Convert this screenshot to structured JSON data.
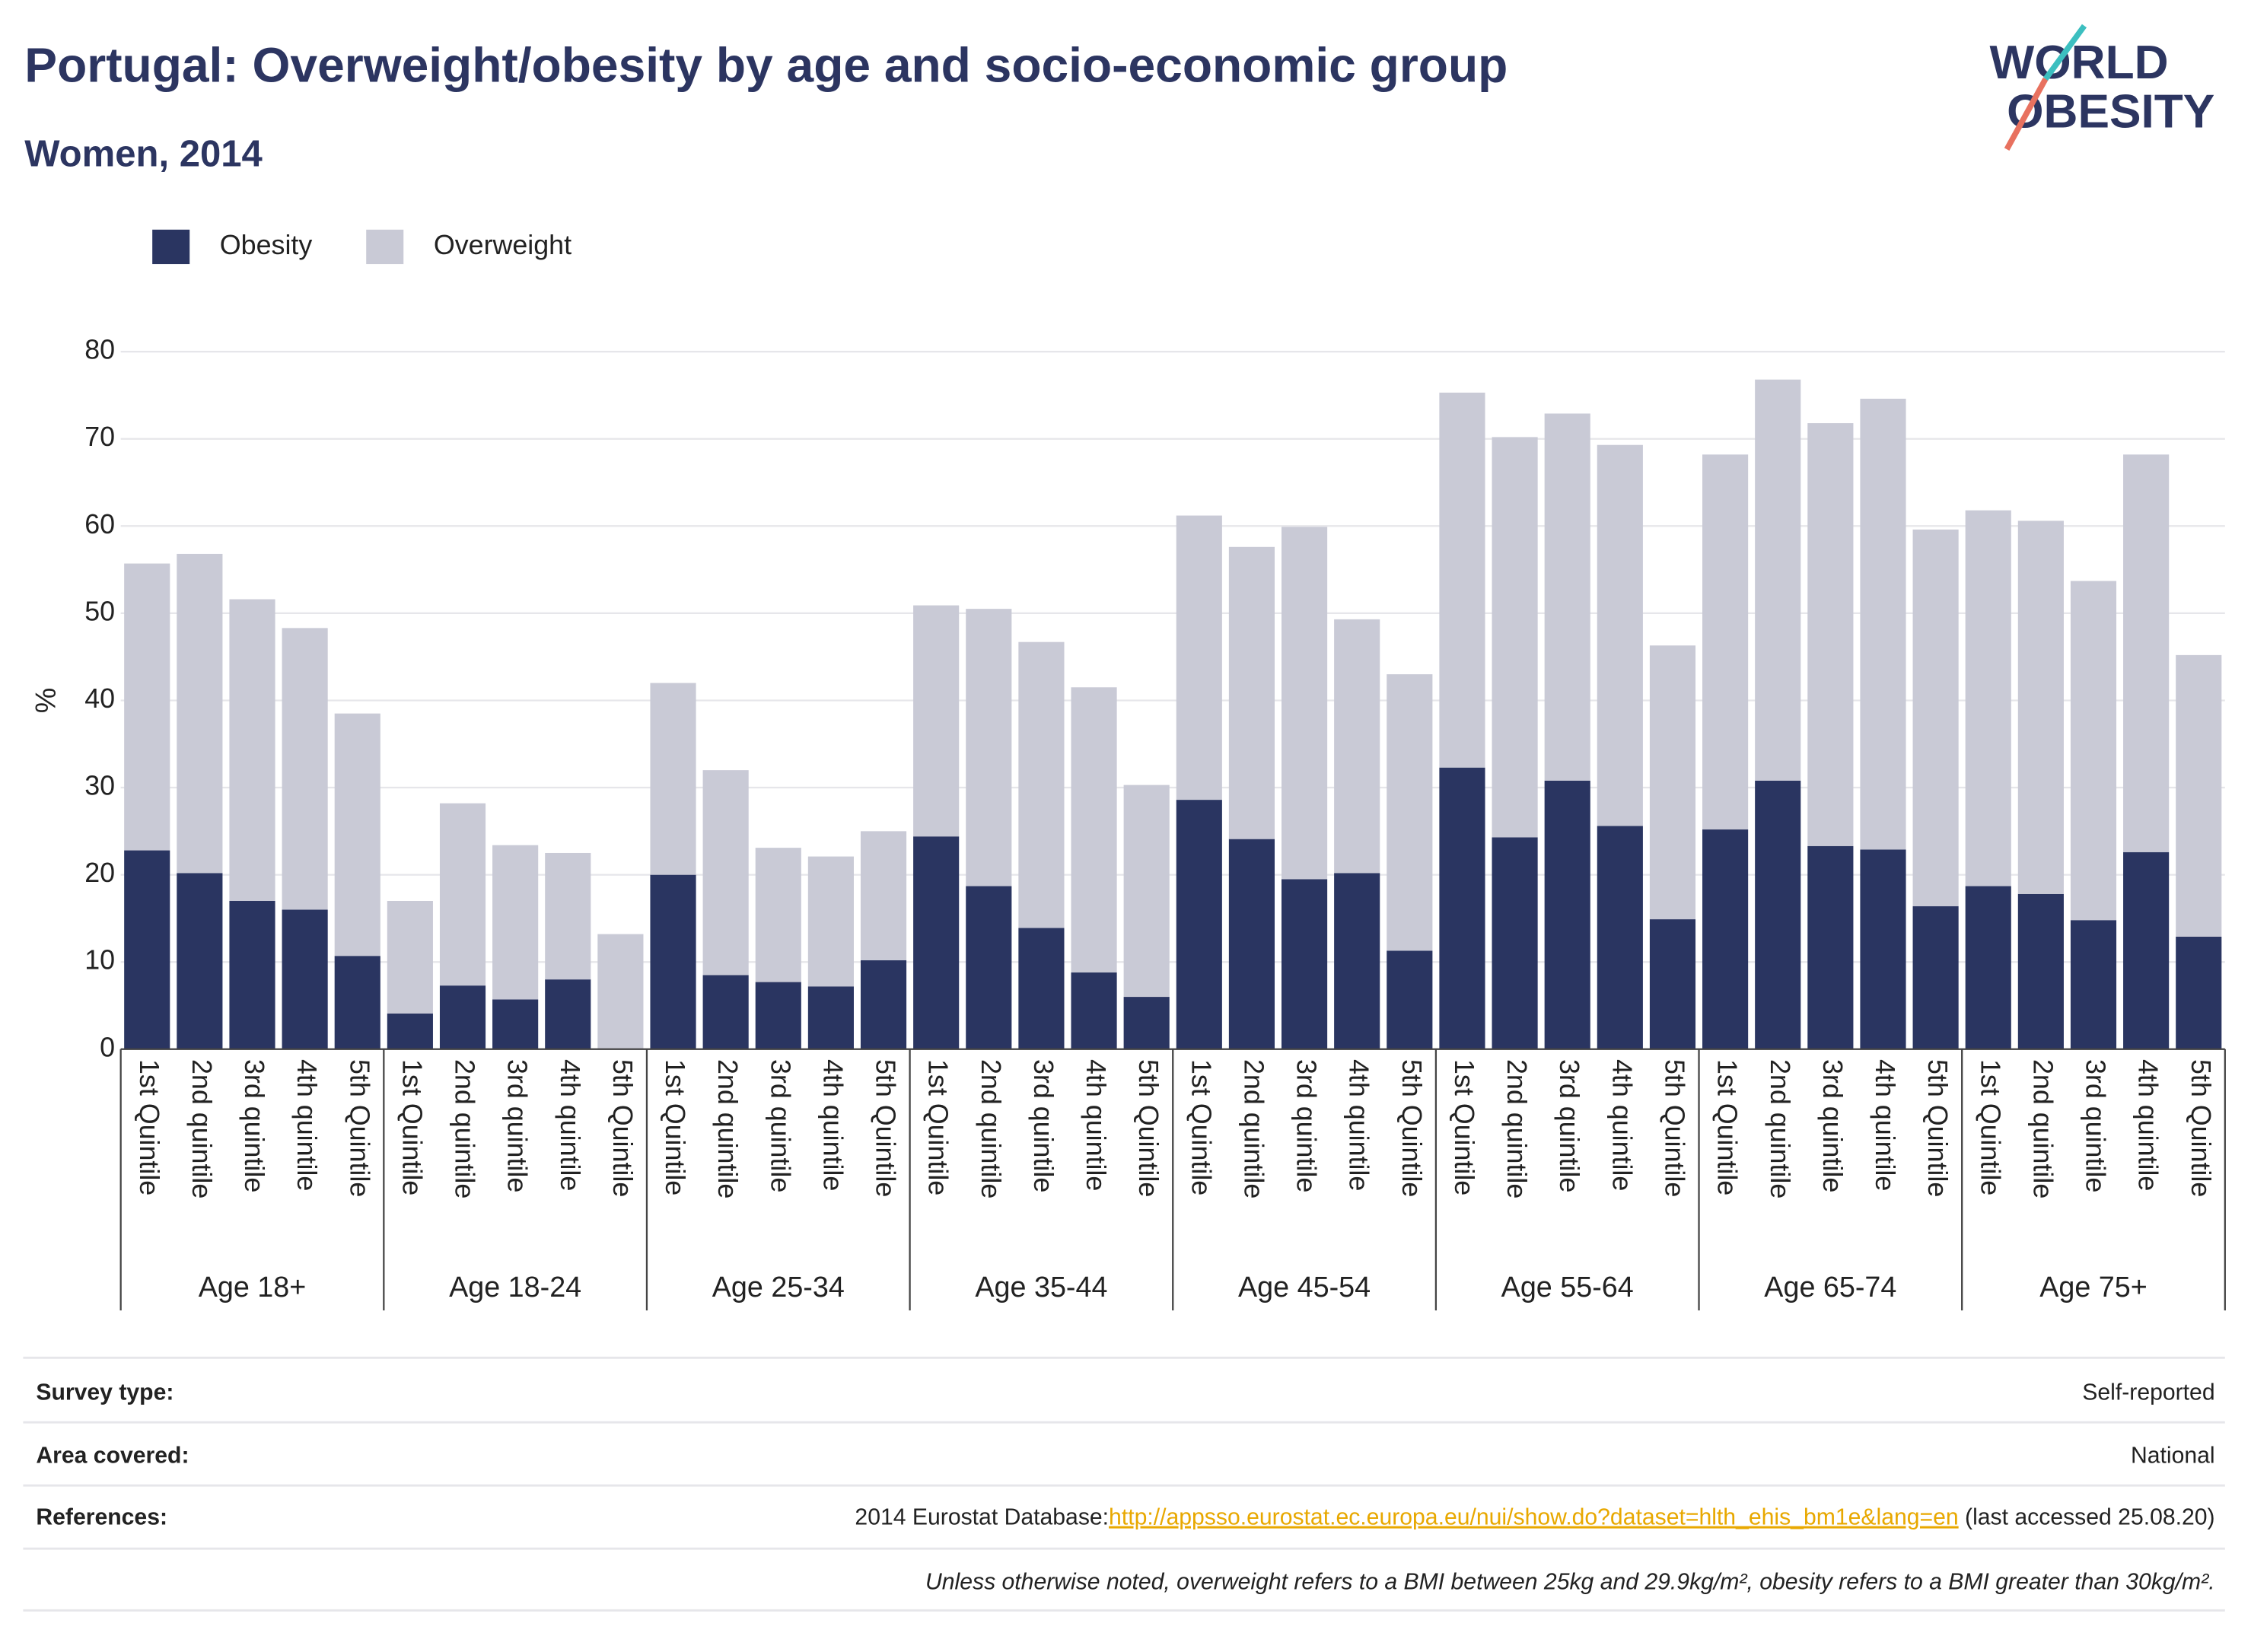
{
  "chart_data": {
    "type": "stacked_bar",
    "title": "Portugal: Overweight/obesity by age and socio-economic group",
    "subtitle": "Women, 2014",
    "logo": [
      "WORLD",
      "OBESITY"
    ],
    "y_label": "%",
    "ylim": [
      0,
      80
    ],
    "yticks": [
      0,
      10,
      20,
      30,
      40,
      50,
      60,
      70,
      80
    ],
    "grid": true,
    "legend": "top-left",
    "groups": [
      "Age 18+",
      "Age 18-24",
      "Age 25-34",
      "Age 35-44",
      "Age 45-54",
      "Age 55-64",
      "Age 65-74",
      "Age 75+"
    ],
    "categories": [
      "1st Quintile",
      "2nd quintile",
      "3rd quintile",
      "4th quintile",
      "5th Quintile",
      "1st Quintile",
      "2nd quintile",
      "3rd quintile",
      "4th quintile",
      "5th Quintile",
      "1st Quintile",
      "2nd quintile",
      "3rd quintile",
      "4th quintile",
      "5th Quintile",
      "1st Quintile",
      "2nd quintile",
      "3rd quintile",
      "4th quintile",
      "5th Quintile",
      "1st Quintile",
      "2nd quintile",
      "3rd quintile",
      "4th quintile",
      "5th Quintile",
      "1st Quintile",
      "2nd quintile",
      "3rd quintile",
      "4th quintile",
      "5th Quintile",
      "1st Quintile",
      "2nd quintile",
      "3rd quintile",
      "4th quintile",
      "5th Quintile",
      "1st Quintile",
      "2nd quintile",
      "3rd quintile",
      "4th quintile",
      "5th Quintile"
    ],
    "series": [
      {
        "name": "Obesity",
        "color": "#2a3561",
        "values": [
          22.8,
          20.2,
          17.0,
          16.0,
          10.7,
          4.1,
          7.3,
          5.7,
          8.0,
          null,
          20.0,
          8.5,
          7.7,
          7.2,
          10.2,
          24.4,
          18.7,
          13.9,
          8.8,
          6.0,
          28.6,
          24.1,
          19.5,
          20.2,
          11.3,
          32.3,
          24.3,
          30.8,
          25.6,
          14.9,
          25.2,
          30.8,
          23.3,
          22.9,
          16.4,
          18.7,
          17.8,
          14.8,
          22.6,
          12.9
        ]
      },
      {
        "name": "Overweight",
        "color": "#c9cad6",
        "values": [
          32.9,
          36.6,
          34.6,
          32.3,
          27.8,
          12.9,
          20.9,
          17.7,
          14.5,
          13.2,
          22.0,
          23.5,
          15.4,
          14.9,
          14.8,
          26.5,
          31.8,
          32.8,
          32.7,
          24.3,
          32.6,
          33.5,
          40.4,
          29.1,
          31.7,
          43.0,
          45.9,
          42.1,
          43.7,
          31.4,
          43.0,
          46.0,
          48.5,
          51.7,
          43.2,
          43.1,
          42.8,
          38.9,
          45.6,
          32.3
        ]
      }
    ]
  },
  "footer": {
    "rows": [
      {
        "label": "Survey type:",
        "value": "Self-reported"
      },
      {
        "label": "Area covered:",
        "value": "National"
      }
    ],
    "references": {
      "label": "References:",
      "text": "2014 Eurostat Database:",
      "link": "http://appsso.eurostat.ec.europa.eu/nui/show.do?dataset=hlth_ehis_bm1e&lang=en",
      "suffix": " (last accessed 25.08.20)"
    },
    "note": "Unless otherwise noted, overweight refers to a BMI between 25kg and 29.9kg/m², obesity refers to a BMI greater than 30kg/m²."
  }
}
